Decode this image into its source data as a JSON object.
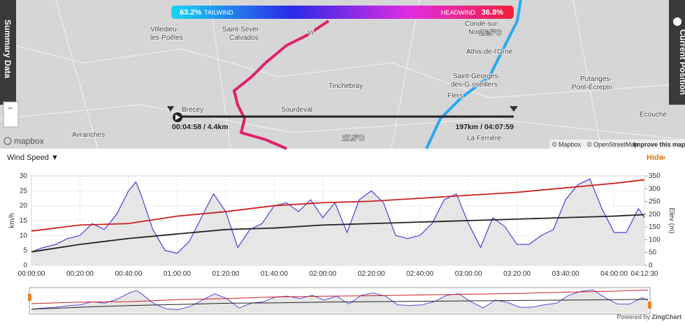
{
  "map": {
    "tailwind_pct": "63.2%",
    "tailwind": "TAILWIND",
    "headwind": "HEADWIND",
    "headwind_pct": "36.8%",
    "labels": [
      "Villedieu-",
      "les-Poêles",
      "Saint-Sever-",
      "Calvados",
      "Vi",
      "Condé-sur-",
      "Noireau",
      "26.5°C",
      "Athis-de-l'Orne",
      "Saint-Georges-",
      "des-G.oseillers",
      "Tinchebray",
      "Flers",
      "Putanges-",
      "Pont-Écrepin",
      "Écouché",
      "Brecey",
      "Sourdeval",
      "Avranches",
      "27.5°C",
      "La Ferrière-"
    ],
    "start": "00:04:58 / 4.4km",
    "end": "197km / 04:07:59",
    "left_tab": "Summary Data",
    "right_tab": "Current Position",
    "logo": "mapbox",
    "attribution": [
      "© Mapbox",
      "© OpenStreetMap",
      "Improve this map"
    ]
  },
  "controls": {
    "dropdown": "Wind Speed ▼",
    "hide": "Hide",
    "powered": "Powered by ",
    "brand": "ZingChart"
  },
  "chart_data": {
    "type": "line",
    "ylabel": "km/h",
    "y2label": "Elev (m)",
    "xlim": [
      0,
      15150
    ],
    "ylim": [
      0,
      30
    ],
    "yticks": [
      0,
      5,
      10,
      15,
      20,
      25,
      30
    ],
    "y2lim": [
      0,
      350
    ],
    "y2ticks": [
      0,
      50,
      100,
      150,
      200,
      250,
      300,
      350
    ],
    "xticks": [
      {
        "value": 0,
        "label": "00:00:00"
      },
      {
        "value": 1200,
        "label": "00:20:00"
      },
      {
        "value": 2400,
        "label": "00:40:00"
      },
      {
        "value": 3600,
        "label": "01:00:00"
      },
      {
        "value": 4800,
        "label": "01:20:00"
      },
      {
        "value": 6000,
        "label": "01:40:00"
      },
      {
        "value": 7200,
        "label": "02:00:00"
      },
      {
        "value": 8400,
        "label": "02:20:00"
      },
      {
        "value": 9600,
        "label": "02:40:00"
      },
      {
        "value": 10800,
        "label": "03:00:00"
      },
      {
        "value": 12000,
        "label": "03:20:00"
      },
      {
        "value": 13200,
        "label": "03:40:00"
      },
      {
        "value": 14400,
        "label": "04:00:00"
      },
      {
        "value": 15150,
        "label": "04:12:30"
      }
    ],
    "grid": true,
    "series": [
      {
        "color": "#5a4ad8",
        "fill": "#e6e6e6",
        "x": [
          0,
          300,
          600,
          900,
          1200,
          1500,
          1800,
          2100,
          2400,
          2580,
          2700,
          3000,
          3300,
          3600,
          3900,
          4200,
          4500,
          4800,
          5100,
          5400,
          5700,
          6000,
          6300,
          6600,
          6900,
          7200,
          7500,
          7800,
          8100,
          8400,
          8700,
          9000,
          9300,
          9600,
          9900,
          10200,
          10500,
          10800,
          11100,
          11400,
          11700,
          12000,
          12300,
          12600,
          12900,
          13200,
          13500,
          13800,
          14100,
          14400,
          14700,
          15000,
          15150
        ],
        "values": [
          4.5,
          6,
          7,
          9,
          10,
          14,
          12,
          17,
          25,
          28,
          24,
          12,
          5,
          4,
          8,
          16,
          24,
          18,
          6,
          12,
          14,
          20,
          21,
          18,
          22,
          16,
          21,
          11,
          22,
          25,
          21,
          10,
          9,
          10,
          14,
          22,
          24,
          14,
          6,
          16,
          13,
          7,
          7,
          10,
          12,
          22,
          27,
          29,
          19,
          11,
          11,
          19,
          16
        ]
      },
      {
        "color": "#cc1f1f",
        "x": [
          0,
          1200,
          2400,
          3600,
          4800,
          6000,
          7200,
          8400,
          9600,
          10800,
          12000,
          13200,
          14400,
          15150
        ],
        "values": [
          11.5,
          13.5,
          14,
          16.5,
          18,
          20,
          21,
          21.5,
          22.5,
          23.5,
          24.5,
          26,
          27.5,
          28.7
        ]
      },
      {
        "color": "#222222",
        "x": [
          0,
          1200,
          2400,
          3600,
          4800,
          6000,
          7200,
          8400,
          9600,
          10800,
          12000,
          13200,
          14400,
          15150
        ],
        "values": [
          4.5,
          7,
          9,
          10.5,
          12,
          12.5,
          13.5,
          14,
          14.5,
          15,
          15.5,
          16,
          16.5,
          17
        ]
      }
    ]
  }
}
